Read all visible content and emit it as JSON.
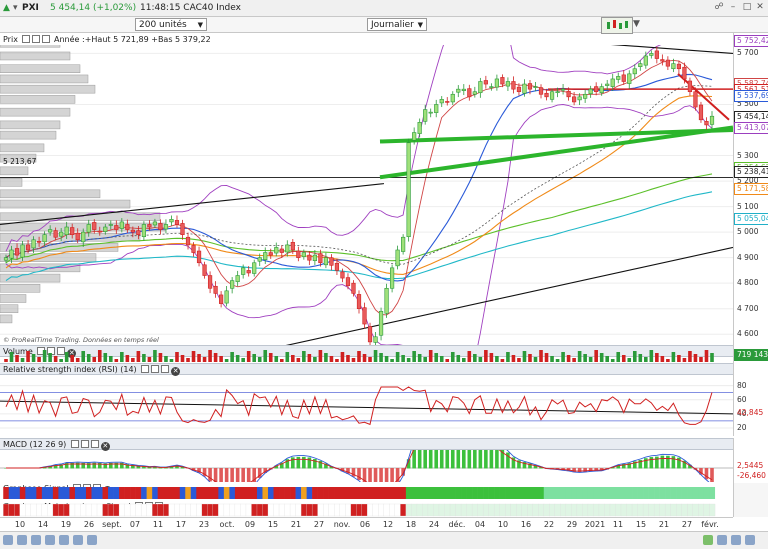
{
  "header": {
    "symbol": "PXI",
    "price": "5 454,14 (+1,02%)",
    "time_and_name": "11:48:15 CAC40 Index"
  },
  "toolbar": {
    "units": "200 unités",
    "period": "Journalier"
  },
  "main_panel": {
    "title": "Prix",
    "stats": "Année :+Haut 5 721,89 +Bas 5 379,22",
    "source_note": "© ProRealTime Trading. Données en temps réel",
    "left_level_label": "5 213,67",
    "y_ticks": [
      "5 700",
      "5 500",
      "5 300",
      "5 200",
      "5 100",
      "5 000",
      "4 900",
      "4 800",
      "4 700",
      "4 600"
    ],
    "price_tags": [
      {
        "label": "5 752,42",
        "color": "#9b3fbf"
      },
      {
        "label": "5 582,74",
        "color": "#d04545"
      },
      {
        "label": "5 561,51",
        "color": "#d02020"
      },
      {
        "label": "5 537,69",
        "color": "#2a5ad8"
      },
      {
        "label": "5 454,14",
        "color": "#222222"
      },
      {
        "label": "5 413,07",
        "color": "#9b3fbf"
      },
      {
        "label": "5 254,62",
        "color": "#5cc02a"
      },
      {
        "label": "5 238,41",
        "color": "#222222"
      },
      {
        "label": "5 171,58",
        "color": "#f08a18"
      },
      {
        "label": "5 055,04",
        "color": "#20b0c8"
      }
    ]
  },
  "volume_panel": {
    "title": "Volume",
    "value": "719 143"
  },
  "rsi_panel": {
    "title": "Relative strength index (RSI) (14)",
    "value": "42,845",
    "y_ticks": [
      "80",
      "60",
      "40",
      "20"
    ]
  },
  "macd_panel": {
    "title": "MACD (12 26 9)",
    "value_1": "2,5445",
    "value_2": "-26,460"
  },
  "signal_panel": {
    "title": "Graphseo Signal"
  },
  "risk_panel": {
    "title": "Graphseo Moindre risque Signal"
  },
  "x_axis_labels": [
    "10",
    "14",
    "19",
    "26",
    "sept.",
    "07",
    "11",
    "17",
    "23",
    "oct.",
    "09",
    "15",
    "21",
    "27",
    "nov.",
    "06",
    "12",
    "18",
    "24",
    "déc.",
    "04",
    "10",
    "16",
    "22",
    "29",
    "2021",
    "11",
    "15",
    "21",
    "27",
    "févr."
  ],
  "chart_data": {
    "type": "candlestick",
    "year_high": 5721.89,
    "year_low": 5379.22,
    "ylim": [
      4550,
      5780
    ],
    "closes": [
      4900,
      4930,
      4910,
      4950,
      4930,
      4970,
      4960,
      4990,
      5010,
      4980,
      5000,
      5020,
      4990,
      4970,
      5000,
      5030,
      5010,
      5000,
      5020,
      5030,
      5010,
      5040,
      5010,
      5000,
      4990,
      5030,
      5020,
      5040,
      5010,
      5030,
      5050,
      5030,
      4990,
      4950,
      4920,
      4880,
      4830,
      4780,
      4760,
      4720,
      4770,
      4810,
      4830,
      4860,
      4840,
      4880,
      4900,
      4920,
      4910,
      4940,
      4920,
      4950,
      4930,
      4900,
      4920,
      4890,
      4910,
      4880,
      4900,
      4870,
      4850,
      4820,
      4790,
      4760,
      4700,
      4640,
      4570,
      4590,
      4690,
      4780,
      4860,
      4930,
      4980,
      5350,
      5390,
      5430,
      5480,
      5470,
      5500,
      5520,
      5510,
      5540,
      5560,
      5560,
      5530,
      5550,
      5590,
      5580,
      5570,
      5600,
      5580,
      5590,
      5560,
      5550,
      5580,
      5560,
      5570,
      5540,
      5530,
      5550,
      5550,
      5560,
      5530,
      5510,
      5530,
      5540,
      5560,
      5550,
      5570,
      5580,
      5600,
      5610,
      5590,
      5620,
      5640,
      5660,
      5690,
      5700,
      5680,
      5670,
      5650,
      5660,
      5640,
      5600,
      5550,
      5490,
      5440,
      5420,
      5454
    ]
  }
}
